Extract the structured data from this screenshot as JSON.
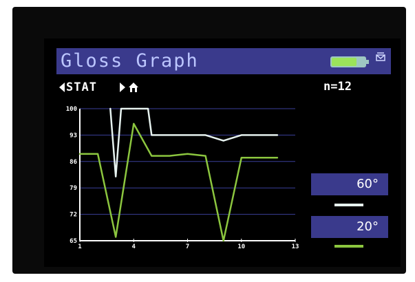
{
  "header": {
    "title": "Gloss Graph",
    "battery_icon": "battery-icon",
    "menu_icon": "mail-icon"
  },
  "nav": {
    "left_icon": "arrow-left-icon",
    "label": "STAT",
    "right_icon": "arrow-right-icon",
    "home_icon": "home-icon"
  },
  "count": {
    "text": "n=12"
  },
  "legend": {
    "items": [
      {
        "label": "60°",
        "color": "#e6f2ef"
      },
      {
        "label": "20°",
        "color": "#8cc63f"
      }
    ]
  },
  "colors": {
    "title_bar": "#3a3a8c",
    "background": "#000000",
    "grid": "#3b3f9a",
    "series_60": "#e6f2ef",
    "series_20": "#8cc63f"
  },
  "chart_data": {
    "type": "line",
    "xlim": [
      1,
      13
    ],
    "ylim": [
      65,
      100
    ],
    "xticks": [
      1,
      4,
      7,
      10,
      13
    ],
    "yticks": [
      65,
      72,
      79,
      86,
      93,
      100
    ],
    "grid": true,
    "series": [
      {
        "name": "60°",
        "color": "#e6f2ef",
        "points": [
          [
            2.7,
            100
          ],
          [
            3,
            82
          ],
          [
            3.3,
            100
          ],
          [
            4.8,
            100
          ],
          [
            5,
            93
          ],
          [
            6,
            93
          ],
          [
            7,
            93
          ],
          [
            8,
            93
          ],
          [
            9,
            91.5
          ],
          [
            10,
            93
          ],
          [
            11,
            93
          ],
          [
            12,
            93
          ]
        ]
      },
      {
        "name": "20°",
        "color": "#8cc63f",
        "points": [
          [
            1,
            88
          ],
          [
            2,
            88
          ],
          [
            3,
            66
          ],
          [
            4,
            96
          ],
          [
            5,
            87.5
          ],
          [
            6,
            87.5
          ],
          [
            7,
            88
          ],
          [
            8,
            87.5
          ],
          [
            9,
            65
          ],
          [
            10,
            87
          ],
          [
            11,
            87
          ],
          [
            12,
            87
          ]
        ]
      }
    ]
  }
}
